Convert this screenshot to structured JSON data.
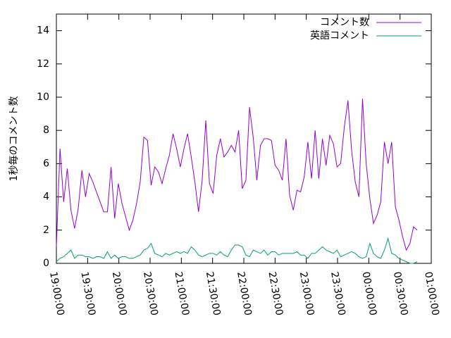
{
  "chart_data": {
    "type": "line",
    "ylabel": "1秒毎のコメント数",
    "ylim": [
      0,
      15
    ],
    "yticks": [
      0,
      2,
      4,
      6,
      8,
      10,
      12,
      14
    ],
    "xlim": [
      "19:00:00",
      "01:00:00"
    ],
    "xticks": [
      "19:00:00",
      "19:30:00",
      "20:00:00",
      "20:30:00",
      "21:00:00",
      "21:30:00",
      "22:00:00",
      "22:30:00",
      "23:00:00",
      "23:30:00",
      "00:00:00",
      "00:30:00",
      "01:00:00"
    ],
    "legend": "top-right",
    "x": [
      "19:00:00",
      "19:03:30",
      "19:07:00",
      "19:10:30",
      "19:14:00",
      "19:17:30",
      "19:21:00",
      "19:24:30",
      "19:28:00",
      "19:31:30",
      "19:35:00",
      "19:38:30",
      "19:42:00",
      "19:45:30",
      "19:49:00",
      "19:52:30",
      "19:56:00",
      "19:59:30",
      "20:03:00",
      "20:06:30",
      "20:10:00",
      "20:13:30",
      "20:17:00",
      "20:20:30",
      "20:24:00",
      "20:27:30",
      "20:31:00",
      "20:34:30",
      "20:38:00",
      "20:41:30",
      "20:45:00",
      "20:48:30",
      "20:52:00",
      "20:55:30",
      "20:59:00",
      "21:02:30",
      "21:06:00",
      "21:09:30",
      "21:13:00",
      "21:16:30",
      "21:20:00",
      "21:23:30",
      "21:27:00",
      "21:30:30",
      "21:34:00",
      "21:37:30",
      "21:41:00",
      "21:44:30",
      "21:48:00",
      "21:51:30",
      "21:55:00",
      "21:58:30",
      "22:02:00",
      "22:05:30",
      "22:09:00",
      "22:12:30",
      "22:16:00",
      "22:19:30",
      "22:23:00",
      "22:26:30",
      "22:30:00",
      "22:33:30",
      "22:37:00",
      "22:40:30",
      "22:44:00",
      "22:47:30",
      "22:51:00",
      "22:54:30",
      "22:58:00",
      "23:01:30",
      "23:05:00",
      "23:08:30",
      "23:12:00",
      "23:15:30",
      "23:19:00",
      "23:22:30",
      "23:26:00",
      "23:29:30",
      "23:33:00",
      "23:36:30",
      "23:40:00",
      "23:43:30",
      "23:47:00",
      "23:50:30",
      "23:54:00",
      "23:57:30",
      "00:01:00",
      "00:04:30",
      "00:08:00",
      "00:11:30",
      "00:15:00",
      "00:18:30",
      "00:22:00",
      "00:25:30",
      "00:29:00",
      "00:32:30",
      "00:36:00",
      "00:39:30",
      "00:43:00",
      "00:46:30"
    ],
    "series": [
      {
        "name": "コメント数",
        "color": "#9400d3",
        "values": [
          1.0,
          6.9,
          3.7,
          5.7,
          3.2,
          2.1,
          3.3,
          5.6,
          4.0,
          5.4,
          4.9,
          4.3,
          3.7,
          3.1,
          3.1,
          5.8,
          2.7,
          4.8,
          3.6,
          2.8,
          2.0,
          2.6,
          3.6,
          4.9,
          7.6,
          7.4,
          4.7,
          5.8,
          5.5,
          4.8,
          5.7,
          6.5,
          7.8,
          6.9,
          5.8,
          6.9,
          7.8,
          6.4,
          4.9,
          3.1,
          5.0,
          8.6,
          4.8,
          4.2,
          6.5,
          7.5,
          6.4,
          6.7,
          7.1,
          6.7,
          8.0,
          4.5,
          5.0,
          9.4,
          7.6,
          5.0,
          7.1,
          7.5,
          7.5,
          7.4,
          5.9,
          5.6,
          5.0,
          7.5,
          4.1,
          3.2,
          4.4,
          4.3,
          5.2,
          7.3,
          5.1,
          8.0,
          5.1,
          7.5,
          5.9,
          7.7,
          7.2,
          5.8,
          6.0,
          8.2,
          9.8,
          6.8,
          4.9,
          4.0,
          9.9,
          6.0,
          3.9,
          2.4,
          2.9,
          3.7,
          7.3,
          6.0,
          7.3,
          3.4,
          2.6,
          1.6,
          0.8,
          1.2,
          2.2,
          2.0
        ]
      },
      {
        "name": "英語コメント",
        "color": "#009e73",
        "values": [
          0.1,
          0.3,
          0.4,
          0.6,
          0.8,
          0.3,
          0.5,
          0.5,
          0.4,
          0.4,
          0.3,
          0.4,
          0.4,
          0.3,
          0.7,
          0.3,
          0.5,
          0.3,
          0.4,
          0.4,
          0.3,
          0.3,
          0.4,
          0.5,
          0.8,
          0.9,
          1.2,
          0.6,
          0.5,
          0.4,
          0.6,
          0.5,
          0.6,
          0.7,
          0.6,
          0.7,
          0.6,
          1.0,
          0.8,
          0.5,
          0.4,
          0.5,
          0.6,
          0.6,
          0.5,
          0.7,
          0.5,
          0.4,
          0.8,
          1.1,
          1.1,
          1.0,
          0.5,
          0.4,
          0.8,
          0.7,
          0.6,
          0.8,
          0.5,
          0.7,
          0.7,
          0.5,
          0.6,
          0.6,
          0.6,
          0.6,
          0.7,
          0.5,
          0.5,
          0.3,
          0.6,
          0.6,
          0.8,
          1.0,
          0.8,
          0.7,
          0.6,
          0.8,
          0.4,
          0.5,
          0.6,
          0.7,
          0.6,
          0.4,
          0.3,
          0.4,
          1.2,
          0.6,
          0.4,
          0.3,
          0.8,
          1.5,
          0.6,
          0.5,
          0.3,
          0.2,
          0.1,
          0.0,
          0.0,
          0.1
        ]
      }
    ]
  }
}
